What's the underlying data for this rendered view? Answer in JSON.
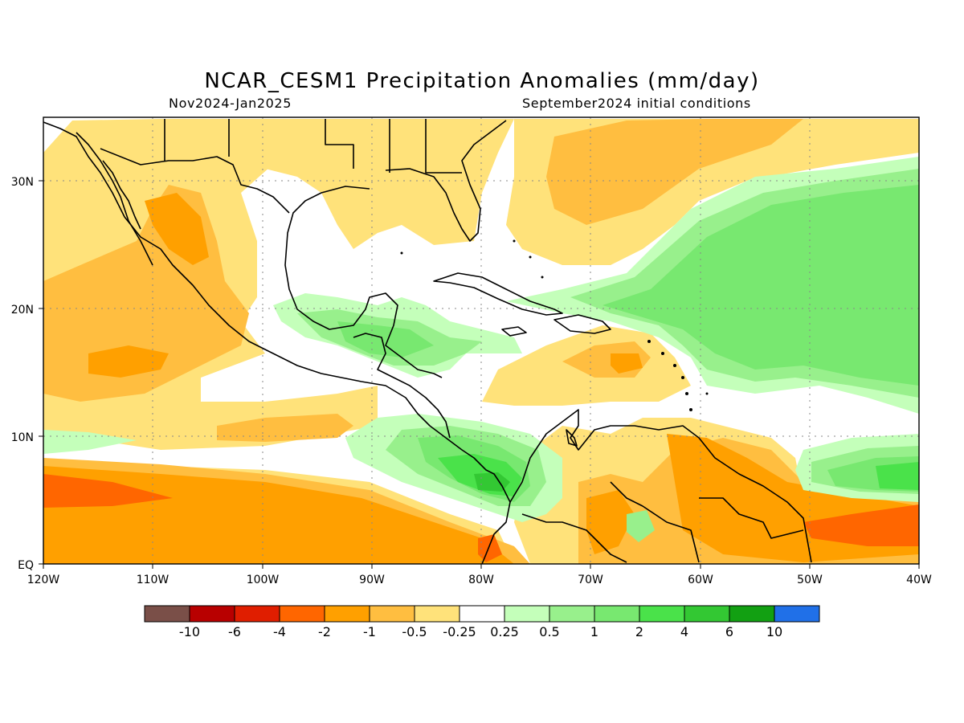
{
  "header": {
    "title": "NCAR_CESM1 Precipitation Anomalies (mm/day)",
    "subtitle_left": "Nov2024-Jan2025",
    "subtitle_right": "September2024 initial conditions"
  },
  "axes": {
    "lat_ticks": [
      "EQ",
      "10N",
      "20N",
      "30N"
    ],
    "lon_ticks": [
      "120W",
      "110W",
      "100W",
      "90W",
      "80W",
      "70W",
      "60W",
      "50W",
      "40W"
    ]
  },
  "legend": {
    "labels": [
      "-10",
      "-6",
      "-4",
      "-2",
      "-1",
      "-0.5",
      "-0.25",
      "0.25",
      "0.5",
      "1",
      "2",
      "4",
      "6",
      "10"
    ],
    "colors": [
      "#7a4f48",
      "#b80000",
      "#e01e00",
      "#ff6600",
      "#ffa000",
      "#ffbe40",
      "#ffe27a",
      "#ffffff",
      "#c4ffba",
      "#98f08c",
      "#78e870",
      "#4ae24a",
      "#33c833",
      "#12a012",
      "#2070e8"
    ]
  },
  "colors": {
    "dry_strong": "#ff6600",
    "dry": "#ffa000",
    "dry_light": "#ffbe40",
    "dry_weak": "#ffe27a",
    "wet_weak": "#c4ffba",
    "wet_light": "#98f08c",
    "wet": "#78e870",
    "wet_strong": "#4ae24a"
  }
}
